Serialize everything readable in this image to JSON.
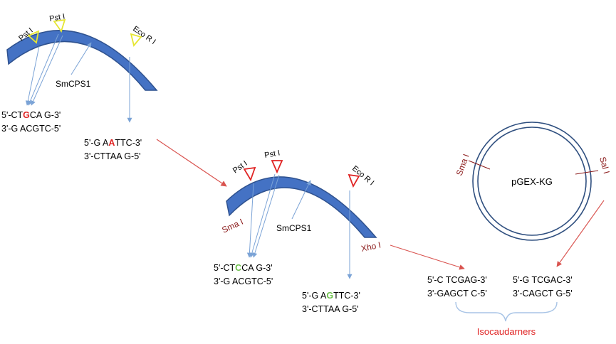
{
  "fragment1": {
    "site_pst1_a": "Pst I",
    "site_pst1_b": "Pst I",
    "site_ecori": "Eco R I",
    "gene": "SmCPS1",
    "pst_top": {
      "pre": "5'-CT",
      "hl": "G",
      "post": "CA G-3'"
    },
    "pst_bottom": "3'-G ACGTC-5'",
    "eco_top": {
      "pre": "5'-G A",
      "hl": "A",
      "post": "TTC-3'"
    },
    "eco_bottom": "3'-CTTAA G-5'"
  },
  "fragment2": {
    "site_pst1_a": "Pst I",
    "site_pst1_b": "Pst I",
    "site_ecori": "Eco R I",
    "site_smai": "Sma I",
    "site_xhoi": "Xho I",
    "gene": "SmCPS1",
    "pst_top": {
      "pre": "5'-CT",
      "hl": "C",
      "post": "CA G-3'"
    },
    "pst_bottom": "3'-G ACGTC-5'",
    "eco_top": {
      "pre": "5'-G A",
      "hl": "G",
      "post": "TTC-3'"
    },
    "eco_bottom": "3'-CTTAA G-5'"
  },
  "plasmid": {
    "name": "pGEX-KG",
    "site_smai": "Sma I",
    "site_sali": "Sal I"
  },
  "xho_end": {
    "top": "5'-C TCGAG-3'",
    "bottom": "3'-GAGCT C-5'"
  },
  "sal_end": {
    "top": "5'-G TCGAC-3'",
    "bottom": "3'-CAGCT G-5'"
  },
  "isocaudarners": "Isocaudarners",
  "colors": {
    "fragment_fill": "#4472c4",
    "fragment_stroke": "#2f528f",
    "marker_yellow": "#e6e632",
    "marker_red": "#e02424",
    "arrow_blue": "#7ba3d6",
    "arrow_red": "#d9534f",
    "plasmid_ring": "#2f4f7f",
    "label_dark_red": "#8b1a1a",
    "brace_blue": "#a8c4e6"
  }
}
